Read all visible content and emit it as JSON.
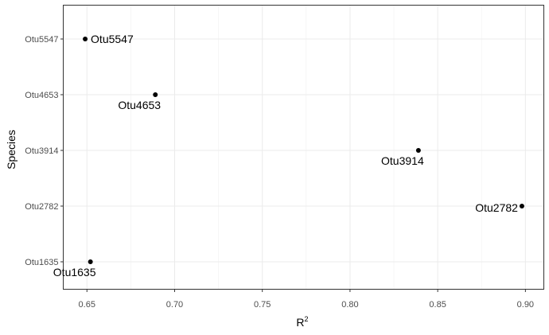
{
  "chart_data": {
    "type": "scatter",
    "xlabel": "R",
    "xlabel_superscript": "2",
    "ylabel": "Species",
    "xlim": [
      0.6365,
      0.9105
    ],
    "x_ticks": [
      "0.65",
      "0.70",
      "0.75",
      "0.80",
      "0.85",
      "0.90"
    ],
    "x_tick_values": [
      0.65,
      0.7,
      0.75,
      0.8,
      0.85,
      0.9
    ],
    "categories": [
      "Otu1635",
      "Otu2782",
      "Otu3914",
      "Otu4653",
      "Otu5547"
    ],
    "points": [
      {
        "species": "Otu5547",
        "x": 0.649,
        "label": "Otu5547",
        "label_side": "right"
      },
      {
        "species": "Otu4653",
        "x": 0.689,
        "label": "Otu4653",
        "label_side": "below-left"
      },
      {
        "species": "Otu3914",
        "x": 0.839,
        "label": "Otu3914",
        "label_side": "below-left"
      },
      {
        "species": "Otu2782",
        "x": 0.898,
        "label": "Otu2782",
        "label_side": "left"
      },
      {
        "species": "Otu1635",
        "x": 0.652,
        "label": "Otu1635",
        "label_side": "below-left"
      }
    ],
    "grid": true,
    "point_color": "#000000"
  }
}
